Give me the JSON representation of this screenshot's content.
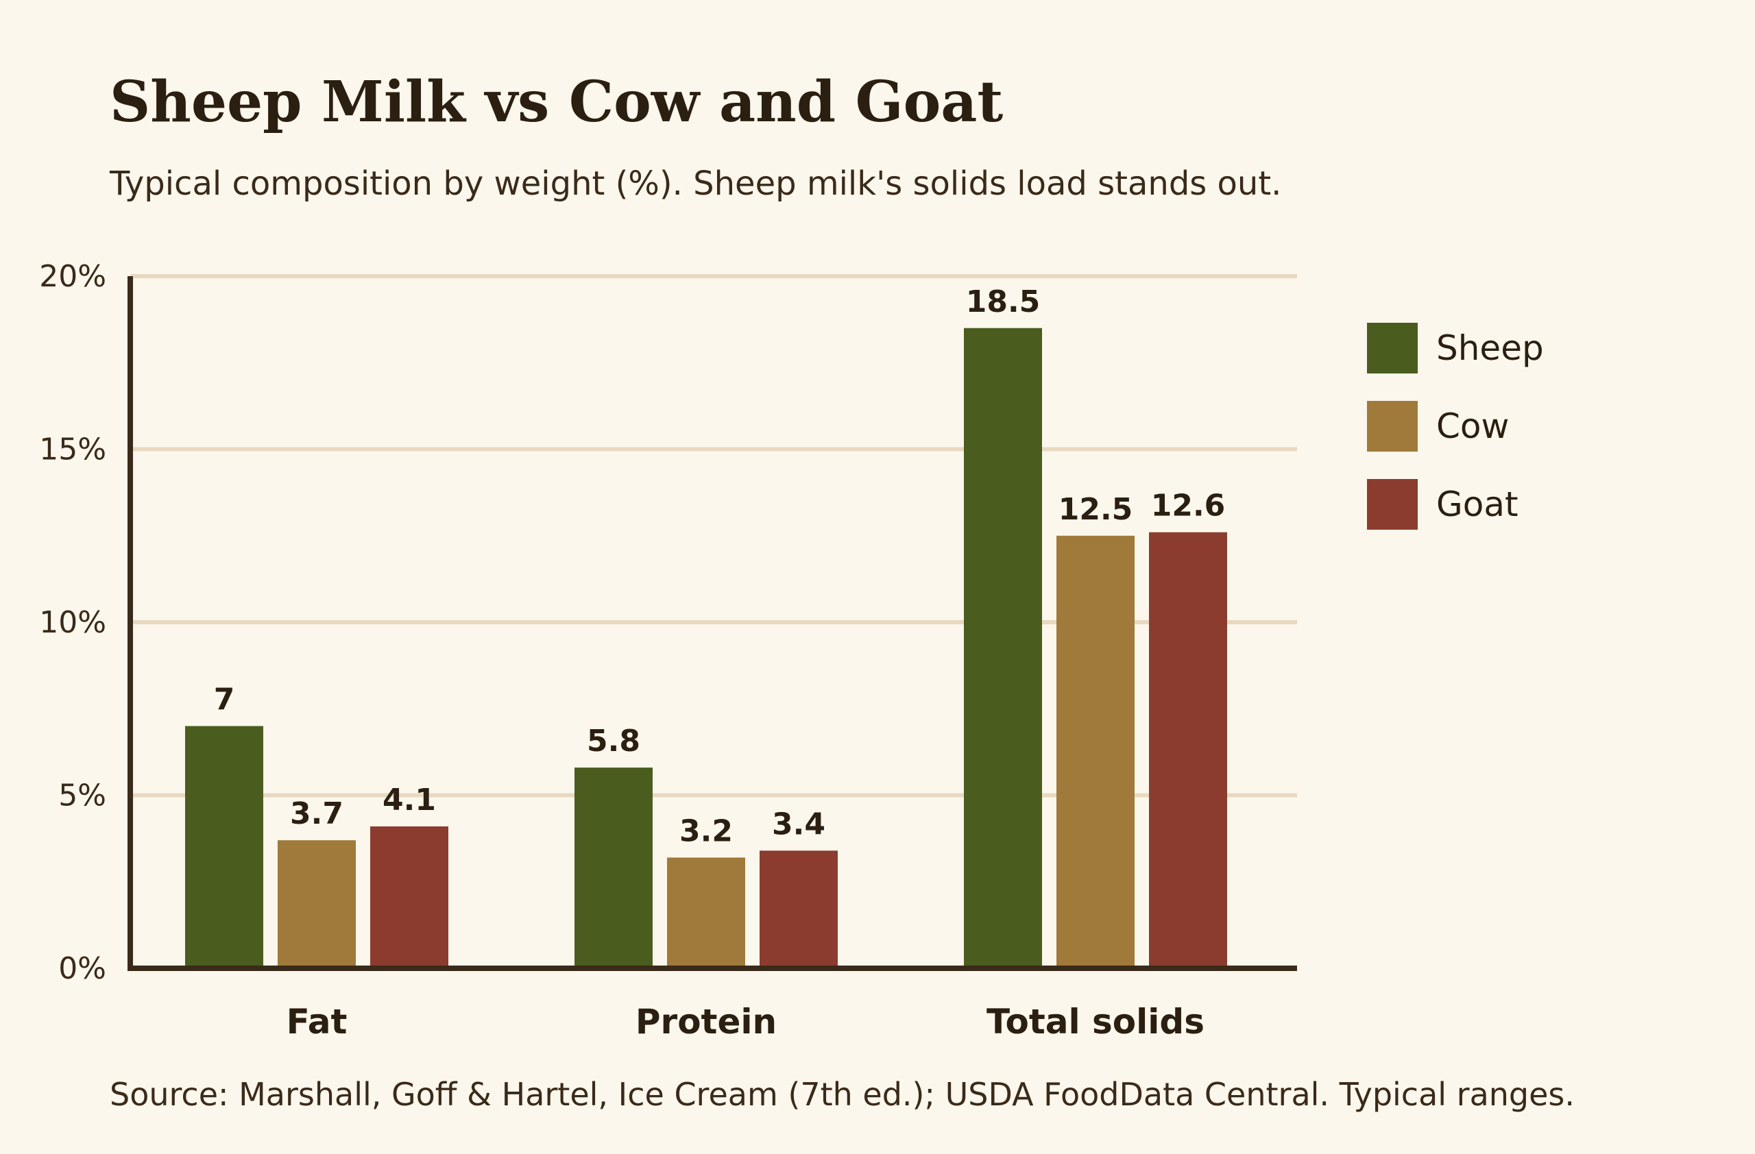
{
  "chart_data": {
    "type": "bar",
    "title": "Sheep Milk vs Cow and Goat",
    "subtitle": "Typical composition by weight (%). Sheep milk's solids load stands out.",
    "source": "Source: Marshall, Goff & Hartel, Ice Cream (7th ed.); USDA FoodData Central. Typical ranges.",
    "categories": [
      "Fat",
      "Protein",
      "Total solids"
    ],
    "series": [
      {
        "name": "Sheep",
        "values": [
          7,
          5.8,
          18.5
        ],
        "labels": [
          "7",
          "5.8",
          "18.5"
        ],
        "color": "#4a5d1f"
      },
      {
        "name": "Cow",
        "values": [
          3.7,
          3.2,
          12.5
        ],
        "labels": [
          "3.7",
          "3.2",
          "12.5"
        ],
        "color": "#a07a3a"
      },
      {
        "name": "Goat",
        "values": [
          4.1,
          3.4,
          12.6
        ],
        "labels": [
          "4.1",
          "3.4",
          "12.6"
        ],
        "color": "#8b3c2f"
      }
    ],
    "ylim": [
      0,
      20
    ],
    "yticks": [
      0,
      5,
      10,
      15,
      20
    ],
    "ytick_labels": [
      "0%",
      "5%",
      "10%",
      "15%",
      "20%"
    ],
    "xlabel": "",
    "ylabel": "",
    "grid": true,
    "legend_position": "right",
    "colors": {
      "background": "#fcf7ec",
      "grid": "#e8d9c0",
      "axis": "#3a2a1a",
      "text": "#2b1f12"
    }
  }
}
